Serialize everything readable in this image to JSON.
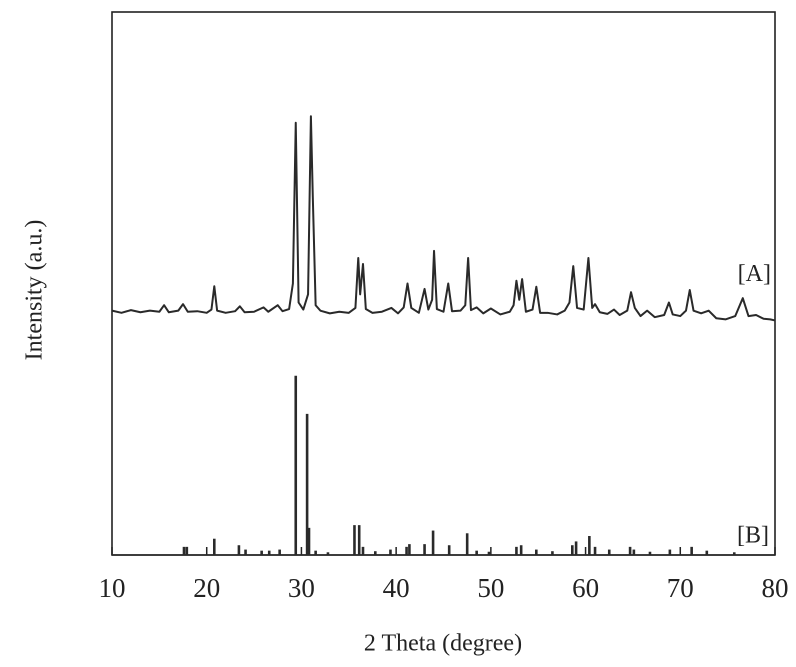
{
  "chart_data": {
    "type": "line",
    "xlabel": "2 Theta (degree)",
    "ylabel": "Intensity (a.u.)",
    "xlim": [
      10,
      80
    ],
    "xticks": [
      10,
      20,
      30,
      40,
      50,
      60,
      70,
      80
    ],
    "ylim": [
      0,
      100
    ],
    "series": [
      {
        "name": "[A]",
        "type": "line",
        "color": "#2a2a2a",
        "x": [
          10,
          11,
          12,
          13,
          14,
          15,
          15.5,
          16,
          17,
          17.5,
          18,
          19,
          20,
          20.5,
          20.8,
          21.1,
          22,
          23,
          23.5,
          24,
          25,
          26,
          26.5,
          27.5,
          28,
          28.7,
          29.1,
          29.4,
          29.7,
          30.2,
          30.7,
          31.0,
          31.2,
          31.5,
          32,
          33,
          34,
          35,
          35.7,
          36.0,
          36.2,
          36.5,
          36.8,
          37.5,
          38.5,
          39.5,
          40.2,
          40.8,
          41.2,
          41.6,
          42.4,
          43.0,
          43.4,
          43.8,
          44.0,
          44.3,
          45.0,
          45.5,
          45.9,
          46.8,
          47.3,
          47.6,
          47.9,
          48.5,
          49.2,
          50.0,
          51,
          52,
          52.4,
          52.7,
          53.0,
          53.3,
          53.7,
          54.4,
          54.8,
          55.2,
          56,
          57,
          57.8,
          58.3,
          58.7,
          59.1,
          59.8,
          60.3,
          60.7,
          61.0,
          61.5,
          62.3,
          63.0,
          63.6,
          64.4,
          64.8,
          65.2,
          65.8,
          66.5,
          67.3,
          68.3,
          68.8,
          69.2,
          70,
          70.6,
          71.0,
          71.4,
          72.2,
          73.0,
          73.8,
          74.8,
          75.8,
          76.6,
          77.2,
          78.0,
          78.8,
          79.5,
          80
        ],
        "values": [
          45.0,
          44.6,
          45.1,
          44.7,
          45.0,
          44.8,
          46.0,
          44.7,
          45.0,
          46.2,
          44.8,
          44.9,
          44.6,
          45.2,
          49.5,
          45.0,
          44.6,
          44.9,
          45.8,
          44.7,
          44.8,
          45.6,
          44.8,
          46.0,
          44.9,
          45.3,
          50,
          79.6,
          46.5,
          45.2,
          48,
          80.8,
          66,
          46,
          45.0,
          44.5,
          44.8,
          44.6,
          45.5,
          54.7,
          48,
          53.6,
          45.3,
          44.6,
          44.8,
          45.5,
          44.5,
          45.6,
          50.0,
          45.5,
          44.6,
          49.0,
          45.2,
          47,
          56.0,
          45.3,
          44.8,
          50.0,
          44.9,
          45.0,
          46,
          54.7,
          45.1,
          45.6,
          44.5,
          45.4,
          44.3,
          44.8,
          46,
          50.5,
          47,
          50.8,
          44.8,
          45.2,
          49.4,
          44.6,
          44.6,
          44.3,
          45,
          46.5,
          53.2,
          45.5,
          45.2,
          54.7,
          45.5,
          46.2,
          44.7,
          44.4,
          45.2,
          44.2,
          45.0,
          48.4,
          45.5,
          44.0,
          45.0,
          43.8,
          44.2,
          46.5,
          44.3,
          44.0,
          45.0,
          48.8,
          45.0,
          44.5,
          45.0,
          43.6,
          43.4,
          44.0,
          47.3,
          44.0,
          44.2,
          43.5,
          43.4,
          43.2
        ]
      },
      {
        "name": "[B]",
        "type": "stem",
        "color": "#2a2a2a",
        "x": [
          17.6,
          17.9,
          20.8,
          23.4,
          24.1,
          25.8,
          26.6,
          27.7,
          29.4,
          30.6,
          30.8,
          31.5,
          32.8,
          35.6,
          36.1,
          36.5,
          37.8,
          39.4,
          41.1,
          41.4,
          43.0,
          43.9,
          45.6,
          47.5,
          48.5,
          49.8,
          52.7,
          53.2,
          54.8,
          56.5,
          58.6,
          59.0,
          60.4,
          61.0,
          62.5,
          64.7,
          65.1,
          66.8,
          68.9,
          71.2,
          72.8,
          75.7
        ],
        "values": [
          1.5,
          1.5,
          3,
          1.8,
          1,
          0.8,
          0.8,
          1,
          33,
          26,
          5,
          0.8,
          0.5,
          5.5,
          5.5,
          1.5,
          0.7,
          1,
          1.5,
          2,
          2,
          4.5,
          1.8,
          4,
          0.8,
          0.6,
          1.5,
          1.8,
          1,
          0.7,
          1.8,
          2.5,
          3.5,
          1.5,
          1,
          1.5,
          1,
          0.6,
          1,
          1.5,
          0.8,
          0.5
        ]
      }
    ]
  }
}
